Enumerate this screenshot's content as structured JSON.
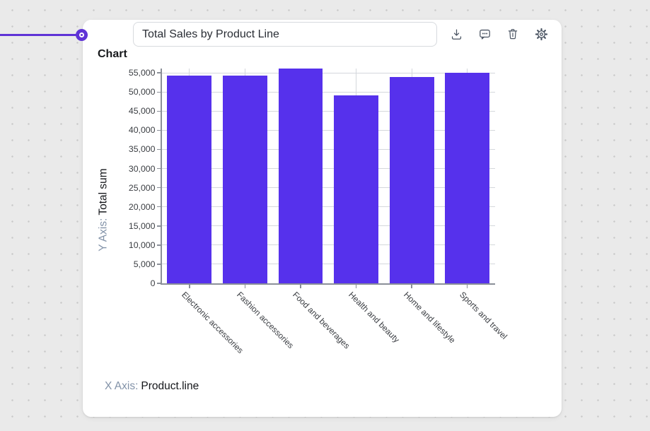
{
  "header": {
    "block_label": "Chart",
    "title_value": "Total Sales by Product Line",
    "toolbar_icons": [
      "download",
      "comment",
      "trash",
      "settings"
    ]
  },
  "chart_data": {
    "type": "bar",
    "title": "Total Sales by Product Line",
    "categories": [
      "Electronic accessories",
      "Fashion accessories",
      "Food and beverages",
      "Health and beauty",
      "Home and lifestyle",
      "Sports and travel"
    ],
    "values": [
      54337.53,
      54305.9,
      56144.84,
      49193.74,
      53861.91,
      55122.83
    ],
    "xlabel_prefix": "X Axis:",
    "xlabel": "Product.line",
    "ylabel_prefix": "Y Axis:",
    "ylabel": "Total sum",
    "y_ticks": [
      0,
      5000,
      10000,
      15000,
      20000,
      25000,
      30000,
      35000,
      40000,
      45000,
      50000,
      55000
    ],
    "ylim": [
      0,
      56144.84
    ],
    "grid": true,
    "legend": "none"
  },
  "colors": {
    "bar": "#5631ec",
    "connector": "#5f33d6",
    "axis_prefix": "#8292a8",
    "gridline": "#d4d7dc",
    "axis_line": "#8a8f98",
    "page_background": "#eaeaea",
    "card_background": "#ffffff"
  }
}
